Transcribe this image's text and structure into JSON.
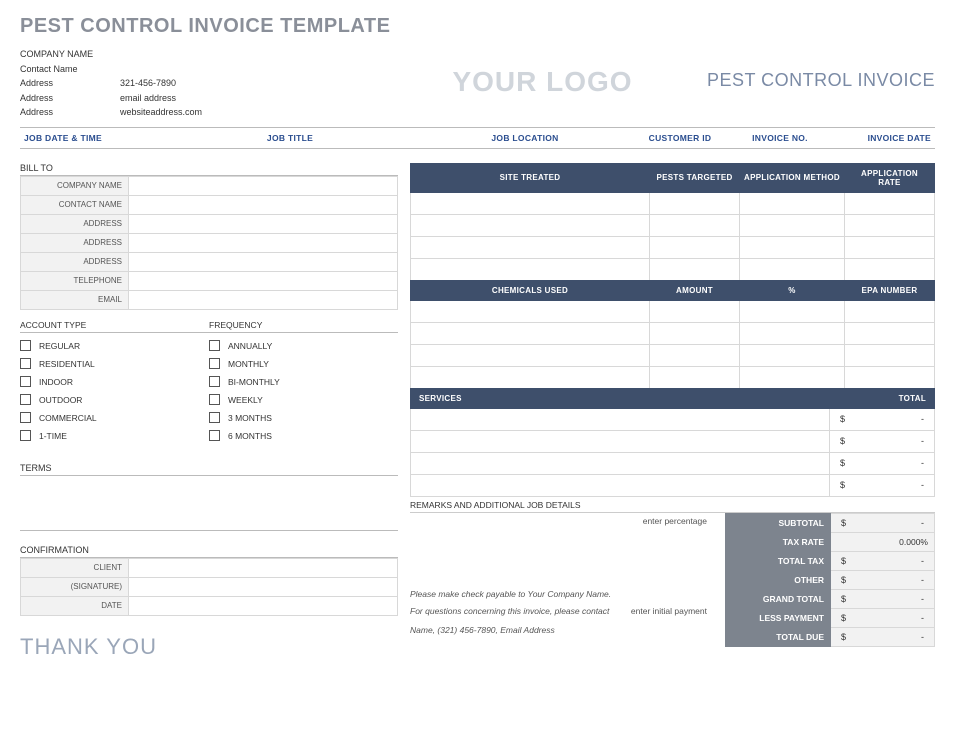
{
  "doc_title": "PEST CONTROL INVOICE TEMPLATE",
  "company": {
    "name": "COMPANY NAME",
    "contact": "Contact Name",
    "rows": [
      {
        "label": "Address",
        "value": "321-456-7890"
      },
      {
        "label": "Address",
        "value": "email address"
      },
      {
        "label": "Address",
        "value": "websiteaddress.com"
      }
    ]
  },
  "logo_text": "YOUR LOGO",
  "invoice_heading": "PEST CONTROL INVOICE",
  "job_header": {
    "date_time": "JOB DATE & TIME",
    "title": "JOB TITLE",
    "location": "JOB LOCATION",
    "customer_id": "CUSTOMER ID",
    "invoice_no": "INVOICE NO.",
    "invoice_date": "INVOICE DATE"
  },
  "bill_to": {
    "heading": "BILL TO",
    "fields": [
      "COMPANY NAME",
      "CONTACT NAME",
      "ADDRESS",
      "ADDRESS",
      "ADDRESS",
      "TELEPHONE",
      "EMAIL"
    ]
  },
  "account": {
    "heading": "ACCOUNT TYPE",
    "options": [
      "REGULAR",
      "RESIDENTIAL",
      "INDOOR",
      "OUTDOOR",
      "COMMERCIAL",
      "1-TIME"
    ]
  },
  "frequency": {
    "heading": "FREQUENCY",
    "options": [
      "ANNUALLY",
      "MONTHLY",
      "BI-MONTHLY",
      "WEEKLY",
      "3 MONTHS",
      "6 MONTHS"
    ]
  },
  "terms_heading": "TERMS",
  "confirmation": {
    "heading": "CONFIRMATION",
    "fields": [
      "CLIENT",
      "(SIGNATURE)",
      "DATE"
    ]
  },
  "thank_you": "THANK YOU",
  "site_table": {
    "headers": [
      "SITE TREATED",
      "PESTS TARGETED",
      "APPLICATION METHOD",
      "APPLICATION RATE"
    ],
    "row_count": 4
  },
  "chem_table": {
    "headers": [
      "CHEMICALS USED",
      "AMOUNT",
      "%",
      "EPA NUMBER"
    ],
    "row_count": 4
  },
  "services_table": {
    "headers": [
      "SERVICES",
      "TOTAL"
    ],
    "rows": [
      {
        "sym": "$",
        "val": "-"
      },
      {
        "sym": "$",
        "val": "-"
      },
      {
        "sym": "$",
        "val": "-"
      },
      {
        "sym": "$",
        "val": "-"
      }
    ]
  },
  "remarks_label": "REMARKS AND ADDITIONAL JOB DETAILS",
  "hints": {
    "enter_percentage": "enter percentage",
    "enter_initial_payment": "enter initial payment"
  },
  "payable": {
    "line1": "Please make check payable to Your Company Name.",
    "line2": "For questions concerning this invoice, please contact",
    "line3": "Name, (321) 456-7890, Email Address"
  },
  "totals": {
    "rows": [
      {
        "label": "SUBTOTAL",
        "sym": "$",
        "val": "-"
      },
      {
        "label": "TAX RATE",
        "pct": "0.000%"
      },
      {
        "label": "TOTAL TAX",
        "sym": "$",
        "val": "-"
      },
      {
        "label": "OTHER",
        "sym": "$",
        "val": "-"
      },
      {
        "label": "GRAND TOTAL",
        "sym": "$",
        "val": "-"
      },
      {
        "label": "LESS PAYMENT",
        "sym": "$",
        "val": "-"
      },
      {
        "label": "TOTAL DUE",
        "sym": "$",
        "val": "-"
      }
    ]
  },
  "colors": {
    "header_dark": "#3e4f6b",
    "totals_gray": "#7d848e",
    "title_gray": "#8a8f99",
    "accent_blue": "#2a4d8f"
  }
}
